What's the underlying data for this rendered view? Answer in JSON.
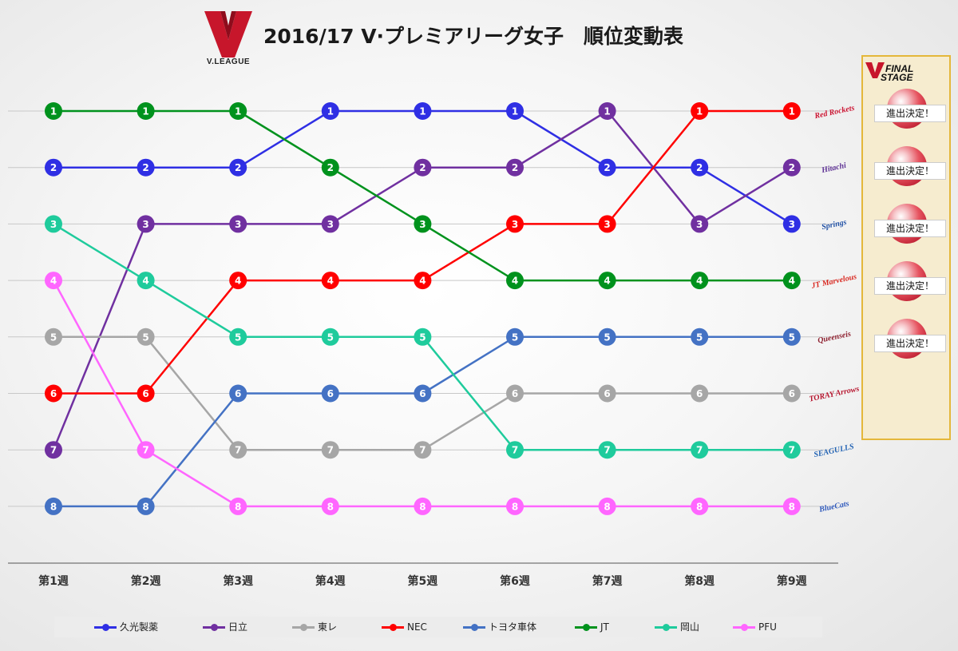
{
  "title": "2016/17 V·プレミアリーグ女子　順位変動表",
  "logo": {
    "text": "V.LEAGUE",
    "letter": "V"
  },
  "final_stage": {
    "title_line1": "FINAL",
    "title_line2": "STAGE",
    "advance_label": "進出決定！",
    "advance_count": 5
  },
  "colors": {
    "久光製薬": "#2f2fe4",
    "日立": "#7030a0",
    "東レ": "#a6a6a6",
    "NEC": "#ff0000",
    "トヨタ車体": "#4472c4",
    "JT": "#00921d",
    "岡山": "#1fcb9c",
    "PFU": "#ff66ff"
  },
  "team_logos": [
    {
      "icon": "red-rockets-logo",
      "text": "Red Rockets"
    },
    {
      "icon": "rivale-logo",
      "text": "Hitachi"
    },
    {
      "icon": "springs-logo",
      "text": "Springs"
    },
    {
      "icon": "marvelous-logo",
      "text": "JT Marvelous"
    },
    {
      "icon": "queenseis-logo",
      "text": "Queenseis"
    },
    {
      "icon": "arrows-logo",
      "text": "TORAY Arrows"
    },
    {
      "icon": "seagulls-logo",
      "text": "SEAGULLS"
    },
    {
      "icon": "bluecats-logo",
      "text": "BlueCats"
    }
  ],
  "chart_data": {
    "type": "line",
    "title": "2016/17 V·プレミアリーグ女子　順位変動表",
    "xlabel": "",
    "ylabel": "",
    "categories": [
      "第1週",
      "第2週",
      "第3週",
      "第4週",
      "第5週",
      "第6週",
      "第7週",
      "第8週",
      "第9週"
    ],
    "ylim": [
      8,
      1
    ],
    "y_inverted": true,
    "grid": true,
    "legend_position": "bottom",
    "series": [
      {
        "name": "久光製薬",
        "values": [
          2,
          2,
          2,
          1,
          1,
          1,
          2,
          2,
          3
        ]
      },
      {
        "name": "日立",
        "values": [
          7,
          3,
          3,
          3,
          2,
          2,
          1,
          3,
          2
        ]
      },
      {
        "name": "東レ",
        "values": [
          5,
          5,
          7,
          7,
          7,
          6,
          6,
          6,
          6
        ]
      },
      {
        "name": "NEC",
        "values": [
          6,
          6,
          4,
          4,
          4,
          3,
          3,
          1,
          1
        ]
      },
      {
        "name": "トヨタ車体",
        "values": [
          8,
          8,
          6,
          6,
          6,
          5,
          5,
          5,
          5
        ]
      },
      {
        "name": "JT",
        "values": [
          1,
          1,
          1,
          2,
          3,
          4,
          4,
          4,
          4
        ]
      },
      {
        "name": "岡山",
        "values": [
          3,
          4,
          5,
          5,
          5,
          7,
          7,
          7,
          7
        ]
      },
      {
        "name": "PFU",
        "values": [
          4,
          7,
          8,
          8,
          8,
          8,
          8,
          8,
          8
        ]
      }
    ]
  }
}
